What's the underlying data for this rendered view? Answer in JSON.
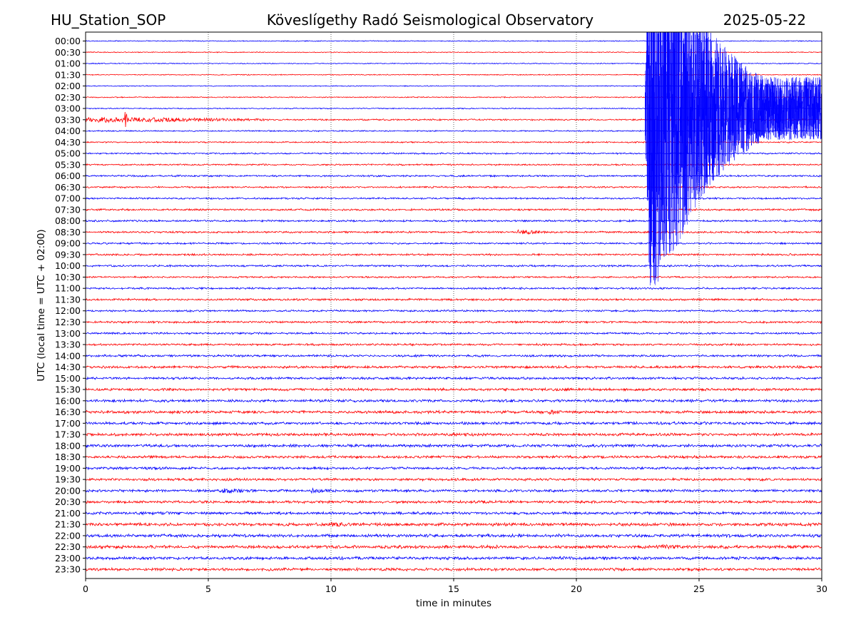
{
  "header": {
    "station": "HU_Station_SOP",
    "observatory": "Köveslígethy Radó Seismological Observatory",
    "date": "2025-05-22"
  },
  "chart_data": {
    "type": "line",
    "xlabel": "time in minutes",
    "ylabel": "UTC (local time = UTC + 02:00)",
    "xlim": [
      0,
      30
    ],
    "x_ticks": [
      "0",
      "5",
      "10",
      "15",
      "20",
      "25",
      "30"
    ],
    "vertical_grid": "dotted at every 5 minutes",
    "row_labels": [
      "00:00",
      "00:30",
      "01:00",
      "01:30",
      "02:00",
      "02:30",
      "03:00",
      "03:30",
      "04:00",
      "04:30",
      "05:00",
      "05:30",
      "06:00",
      "06:30",
      "07:00",
      "07:30",
      "08:00",
      "08:30",
      "09:00",
      "09:30",
      "10:00",
      "10:30",
      "11:00",
      "11:30",
      "12:00",
      "12:30",
      "13:00",
      "13:30",
      "14:00",
      "14:30",
      "15:00",
      "15:30",
      "16:00",
      "16:30",
      "17:00",
      "17:30",
      "18:00",
      "18:30",
      "19:00",
      "19:30",
      "20:00",
      "20:30",
      "21:00",
      "21:30",
      "22:00",
      "22:30",
      "23:00",
      "23:30"
    ],
    "series_colors": [
      "#0000ff",
      "#ff0000"
    ],
    "noise_level_per_row": [
      0.3,
      0.3,
      0.3,
      0.3,
      0.3,
      0.35,
      0.35,
      0.5,
      0.4,
      0.45,
      0.5,
      0.5,
      0.55,
      0.55,
      0.55,
      0.6,
      0.6,
      0.6,
      0.55,
      0.6,
      0.6,
      0.55,
      0.6,
      0.65,
      0.6,
      0.65,
      0.6,
      0.65,
      0.7,
      0.8,
      0.75,
      0.8,
      0.85,
      0.9,
      0.85,
      0.9,
      0.9,
      0.85,
      0.8,
      0.8,
      0.8,
      0.85,
      0.9,
      1.0,
      1.0,
      1.0,
      0.95,
      0.9
    ],
    "events": [
      {
        "row": 7,
        "start_min": 0.0,
        "end_min": 7.5,
        "amplitude": 2.2,
        "note": "regional event"
      },
      {
        "row": 7,
        "start_min": 1.6,
        "end_min": 1.7,
        "amplitude": 9.0,
        "note": "spike"
      },
      {
        "row": 17,
        "start_min": 17.6,
        "end_min": 18.8,
        "amplitude": 2.0
      },
      {
        "row": 33,
        "start_min": 18.9,
        "end_min": 19.3,
        "amplitude": 2.2
      },
      {
        "row": 40,
        "start_min": 5.5,
        "end_min": 7.0,
        "amplitude": 2.2
      },
      {
        "row": 40,
        "start_min": 9.2,
        "end_min": 10.0,
        "amplitude": 2.0
      },
      {
        "row": 43,
        "start_min": 10.0,
        "end_min": 11.2,
        "amplitude": 2.0
      },
      {
        "row": 45,
        "start_min": 14.6,
        "end_min": 15.2,
        "amplitude": 1.6
      },
      {
        "row": 45,
        "start_min": 23.3,
        "end_min": 25.0,
        "amplitude": 2.0
      },
      {
        "row": 6,
        "start_min": 22.8,
        "end_min": 30.0,
        "amplitude": 40.0,
        "note": "teleseismic event, saturated trace"
      }
    ]
  }
}
